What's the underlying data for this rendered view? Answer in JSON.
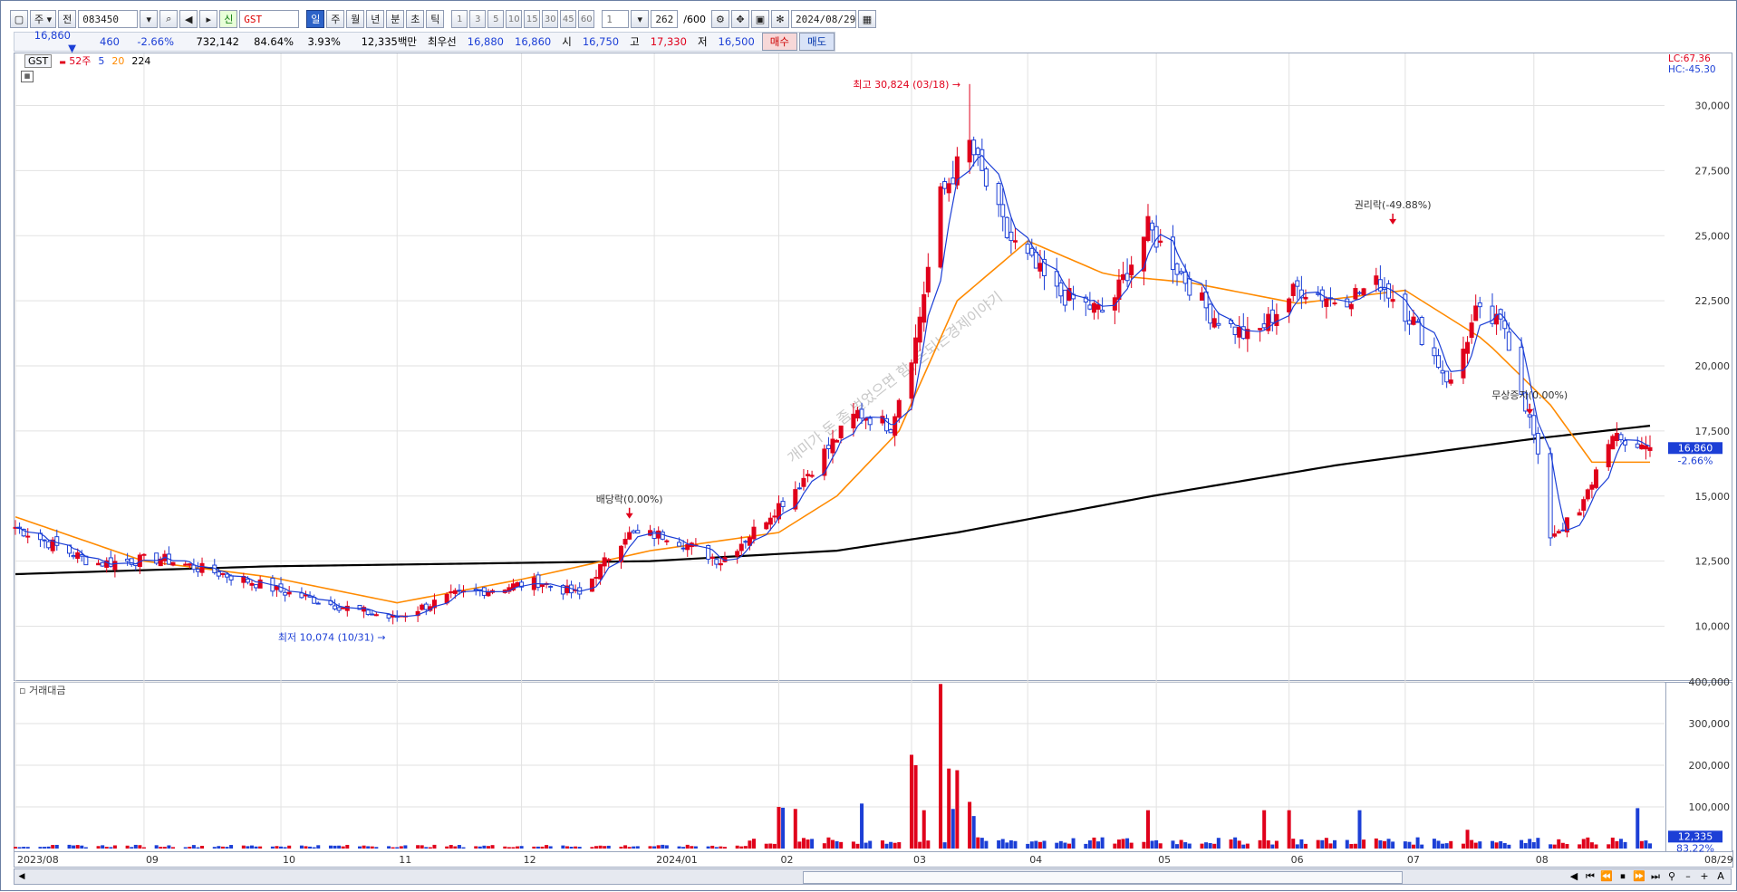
{
  "toolbar": {
    "period_label": "주",
    "type_label": "전",
    "code": "083450",
    "shin_label": "신",
    "name": "GST",
    "timeframes": [
      "일",
      "주",
      "월",
      "년",
      "분",
      "초",
      "틱"
    ],
    "active_timeframe": "일",
    "intervals": [
      "1",
      "3",
      "5",
      "10",
      "15",
      "30",
      "45",
      "60"
    ],
    "minute_select": "1",
    "count": "262",
    "max_count": "/600",
    "date": "2024/08/29"
  },
  "quote": {
    "price": "16,860",
    "change": "460",
    "change_pct": "-2.66%",
    "volume": "732,142",
    "vol_ratio": "84.64%",
    "turnover": "3.93%",
    "amount": "12,335백만",
    "priority_label": "최우선",
    "ask": "16,880",
    "bid": "16,860",
    "open_label": "시",
    "open": "16,750",
    "high_label": "고",
    "high": "17,330",
    "low_label": "저",
    "low": "16,500",
    "buy_label": "매수",
    "sell_label": "매도"
  },
  "legend": {
    "name": "GST",
    "week52": "52주",
    "ma5": "5",
    "ma20": "20",
    "ma224": "224",
    "colors": {
      "ma5": "#1c3fd6",
      "ma20": "#ff8a00",
      "ma224": "#000000",
      "week52": "#e0001b"
    }
  },
  "right_labels": {
    "lc": "LC:67.36",
    "hc": "HC:-45.30"
  },
  "annotations": {
    "high": "최고 30,824 (03/18)",
    "low": "최저 10,074 (10/31)",
    "dividend": "배당락(0.00%)",
    "rights": "권리락(-49.88%)",
    "bonus": "무상증자(0.00%)",
    "watermark": "개미가 돈 좀 벌었으면 함, 돈되는경제이야기"
  },
  "volume_panel": {
    "title": "거래대금"
  },
  "price_tag": {
    "price": "16,860",
    "pct": "-2.66%"
  },
  "volume_tag": {
    "value": "12,335",
    "pct": "83.22%"
  },
  "date_axis_end": "08/29",
  "scroll_controls": [
    "◀",
    "⏮",
    "⏪",
    "⏹",
    "⏩",
    "⏭",
    "⚲",
    "–",
    "+",
    "A"
  ],
  "chart_data": [
    {
      "type": "candlestick",
      "title": "GST",
      "ylim": [
        8000,
        32000
      ],
      "y_ticks": [
        10000,
        12500,
        15000,
        17500,
        20000,
        22500,
        25000,
        27500,
        30000
      ],
      "y_tick_labels": [
        "10,000",
        "12,500",
        "15,000",
        "17,500",
        "20,000",
        "22,500",
        "25,000",
        "27,500",
        "30,000"
      ],
      "x_labels": [
        "2023/08",
        "09",
        "10",
        "11",
        "12",
        "2024/01",
        "02",
        "03",
        "04",
        "05",
        "06",
        "07",
        "08"
      ],
      "anchors": [
        [
          "2023-08-01",
          13800
        ],
        [
          "2023-08-20",
          12400
        ],
        [
          "2023-09-05",
          12600
        ],
        [
          "2023-09-25",
          11800
        ],
        [
          "2023-10-05",
          11300
        ],
        [
          "2023-10-20",
          10700
        ],
        [
          "2023-10-31",
          10300
        ],
        [
          "2023-11-15",
          11200
        ],
        [
          "2023-12-05",
          11700
        ],
        [
          "2023-12-15",
          11200
        ],
        [
          "2023-12-26",
          13500
        ],
        [
          "2024-01-05",
          13500
        ],
        [
          "2024-01-18",
          12500
        ],
        [
          "2024-01-25",
          13500
        ],
        [
          "2024-02-05",
          15300
        ],
        [
          "2024-02-20",
          18200
        ],
        [
          "2024-02-28",
          17700
        ],
        [
          "2024-03-05",
          21000
        ],
        [
          "2024-03-11",
          26500
        ],
        [
          "2024-03-18",
          28500
        ],
        [
          "2024-03-27",
          25000
        ],
        [
          "2024-04-08",
          22800
        ],
        [
          "2024-04-20",
          22000
        ],
        [
          "2024-04-30",
          25300
        ],
        [
          "2024-05-15",
          22000
        ],
        [
          "2024-05-25",
          21000
        ],
        [
          "2024-06-05",
          23000
        ],
        [
          "2024-06-15",
          22500
        ],
        [
          "2024-06-25",
          23200
        ],
        [
          "2024-07-03",
          21700
        ],
        [
          "2024-07-12",
          19300
        ],
        [
          "2024-07-18",
          22000
        ],
        [
          "2024-07-25",
          21500
        ],
        [
          "2024-08-01",
          17300
        ],
        [
          "2024-08-05",
          13500
        ],
        [
          "2024-08-12",
          14300
        ],
        [
          "2024-08-19",
          17200
        ],
        [
          "2024-08-29",
          16860
        ]
      ],
      "ma_series": {
        "ma20": [
          [
            "2023-08-01",
            14200
          ],
          [
            "2023-09-01",
            12500
          ],
          [
            "2023-10-01",
            11900
          ],
          [
            "2023-11-01",
            10900
          ],
          [
            "2023-12-01",
            11800
          ],
          [
            "2024-01-01",
            12900
          ],
          [
            "2024-02-01",
            13600
          ],
          [
            "2024-02-15",
            15000
          ],
          [
            "2024-03-01",
            17500
          ],
          [
            "2024-03-15",
            22500
          ],
          [
            "2024-04-01",
            24800
          ],
          [
            "2024-04-20",
            23500
          ],
          [
            "2024-05-10",
            23200
          ],
          [
            "2024-06-05",
            22400
          ],
          [
            "2024-07-01",
            22900
          ],
          [
            "2024-07-20",
            21000
          ],
          [
            "2024-08-05",
            18500
          ],
          [
            "2024-08-15",
            16300
          ],
          [
            "2024-08-29",
            16300
          ]
        ],
        "ma224": [
          [
            "2023-08-01",
            12000
          ],
          [
            "2023-10-01",
            12300
          ],
          [
            "2024-01-01",
            12500
          ],
          [
            "2024-02-15",
            12900
          ],
          [
            "2024-03-15",
            13600
          ],
          [
            "2024-05-01",
            15000
          ],
          [
            "2024-06-15",
            16200
          ],
          [
            "2024-08-01",
            17200
          ],
          [
            "2024-08-29",
            17700
          ]
        ]
      },
      "week52_high": {
        "date": "2024-03-18",
        "value": 30824
      },
      "week52_low": {
        "date": "2023-10-31",
        "value": 10074
      },
      "events": [
        {
          "date": "2023-12-27",
          "label": "배당락(0.00%)",
          "value": 14200
        },
        {
          "date": "2024-06-28",
          "label": "권리락(-49.88%)",
          "value": 25500
        },
        {
          "date": "2024-07-31",
          "label": "무상증자(0.00%)",
          "value": 18200
        }
      ],
      "last": {
        "open": 16750,
        "high": 17330,
        "low": 16500,
        "close": 16860
      }
    },
    {
      "type": "bar",
      "title": "거래대금",
      "ylim": [
        0,
        400000
      ],
      "y_ticks": [
        100000,
        200000,
        300000,
        400000
      ],
      "y_tick_labels": [
        "100,000",
        "200,000",
        "300,000",
        "400,000"
      ],
      "peaks": [
        [
          "2024-02-01",
          100000
        ],
        [
          "2024-02-02",
          98000
        ],
        [
          "2024-02-05",
          95000
        ],
        [
          "2024-02-21",
          108000
        ],
        [
          "2024-03-04",
          225000
        ],
        [
          "2024-03-05",
          200000
        ],
        [
          "2024-03-07",
          92000
        ],
        [
          "2024-03-11",
          395000
        ],
        [
          "2024-03-13",
          192000
        ],
        [
          "2024-03-14",
          95000
        ],
        [
          "2024-03-15",
          188000
        ],
        [
          "2024-03-18",
          112000
        ],
        [
          "2024-03-19",
          78000
        ],
        [
          "2024-04-30",
          92000
        ],
        [
          "2024-05-28",
          92000
        ],
        [
          "2024-06-03",
          92000
        ],
        [
          "2024-06-20",
          92000
        ],
        [
          "2024-07-16",
          45000
        ],
        [
          "2024-08-26",
          97000
        ]
      ],
      "last": 12335
    }
  ]
}
